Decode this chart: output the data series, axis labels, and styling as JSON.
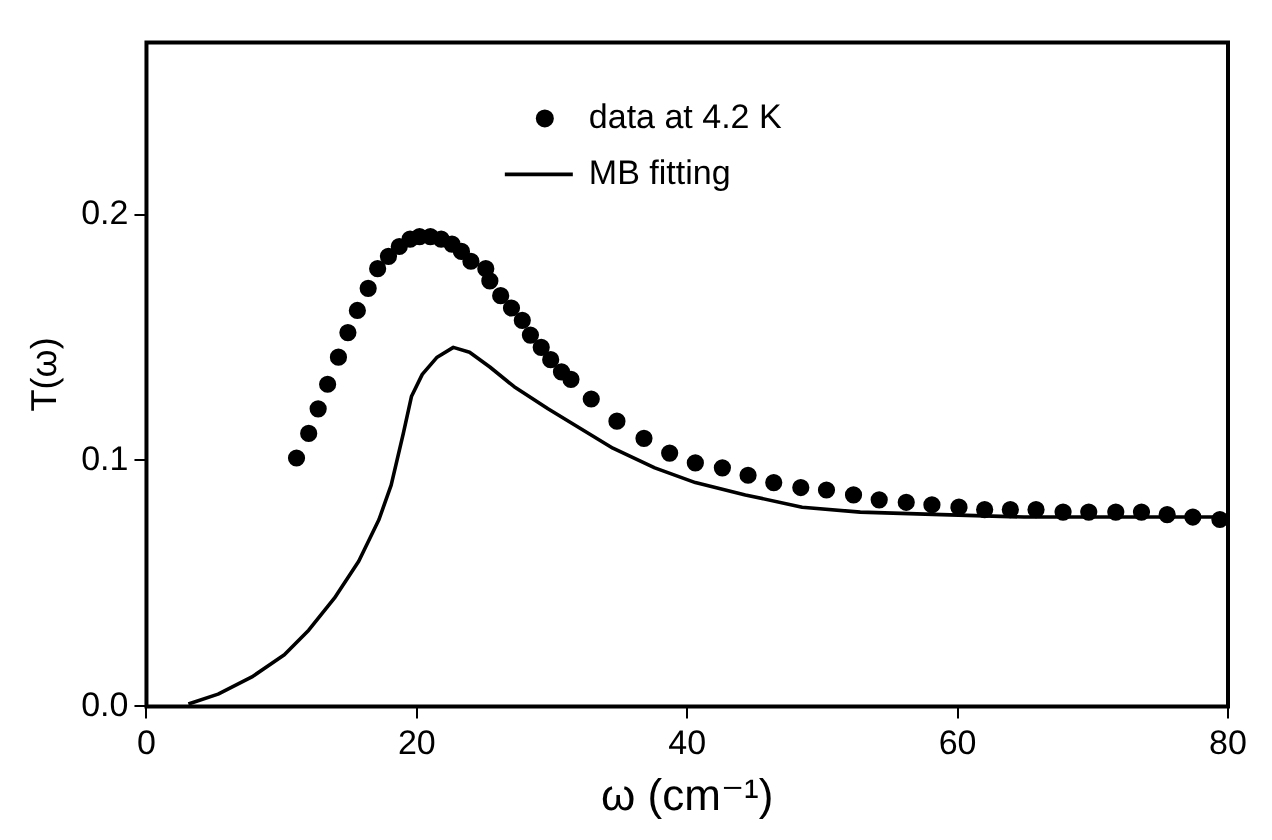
{
  "chart_data": {
    "type": "scatter",
    "xlabel": "ω (cm⁻¹)",
    "ylabel": "T(ω)",
    "xlim": [
      0,
      80
    ],
    "xticks": [
      0,
      20,
      40,
      60,
      80
    ],
    "ylim": [
      0,
      0.27
    ],
    "yticks": [
      {
        "value": 0,
        "label": "0.0"
      },
      0.1,
      0.2
    ],
    "grid": false,
    "legend": "top",
    "series": [
      {
        "name": "data at 4.2 K",
        "type": "scatter",
        "marker": "circle",
        "color": "#000000",
        "x": [
          11.1,
          12.0,
          12.7,
          13.4,
          14.2,
          14.9,
          15.6,
          16.4,
          17.1,
          17.9,
          18.7,
          19.5,
          20.2,
          21.0,
          21.8,
          22.6,
          23.3,
          24.0,
          25.1,
          25.4,
          26.2,
          27.0,
          27.8,
          28.4,
          29.2,
          29.9,
          30.7,
          31.4,
          32.9,
          34.8,
          36.8,
          38.7,
          40.6,
          42.6,
          44.5,
          46.4,
          48.4,
          50.3,
          52.3,
          54.2,
          56.2,
          58.1,
          60.1,
          62.0,
          63.9,
          65.8,
          67.8,
          69.7,
          71.7,
          73.6,
          75.5,
          77.4,
          79.4
        ],
        "values": [
          0.101,
          0.111,
          0.121,
          0.131,
          0.142,
          0.152,
          0.161,
          0.17,
          0.178,
          0.183,
          0.187,
          0.19,
          0.191,
          0.191,
          0.19,
          0.188,
          0.185,
          0.181,
          0.178,
          0.173,
          0.167,
          0.162,
          0.157,
          0.151,
          0.146,
          0.141,
          0.136,
          0.133,
          0.125,
          0.116,
          0.109,
          0.103,
          0.099,
          0.097,
          0.094,
          0.091,
          0.089,
          0.088,
          0.086,
          0.084,
          0.083,
          0.082,
          0.081,
          0.08,
          0.08,
          0.08,
          0.079,
          0.079,
          0.079,
          0.079,
          0.078,
          0.077,
          0.076
        ]
      },
      {
        "name": "MB fitting",
        "type": "line",
        "marker": "none",
        "line_style": "solid",
        "color": "#000000",
        "x": [
          3.1,
          5.3,
          7.8,
          10.2,
          12.0,
          13.9,
          15.7,
          17.2,
          18.1,
          19.0,
          19.6,
          20.4,
          21.5,
          22.7,
          23.9,
          25.4,
          27.2,
          29.7,
          32.1,
          34.5,
          37.6,
          40.6,
          44.3,
          48.5,
          52.8,
          58.8,
          64.9,
          71.0,
          80.0
        ],
        "values": [
          0.001,
          0.005,
          0.012,
          0.021,
          0.031,
          0.044,
          0.059,
          0.076,
          0.09,
          0.111,
          0.126,
          0.135,
          0.142,
          0.146,
          0.144,
          0.138,
          0.13,
          0.121,
          0.113,
          0.105,
          0.097,
          0.091,
          0.086,
          0.081,
          0.079,
          0.078,
          0.077,
          0.077,
          0.077
        ]
      }
    ]
  }
}
